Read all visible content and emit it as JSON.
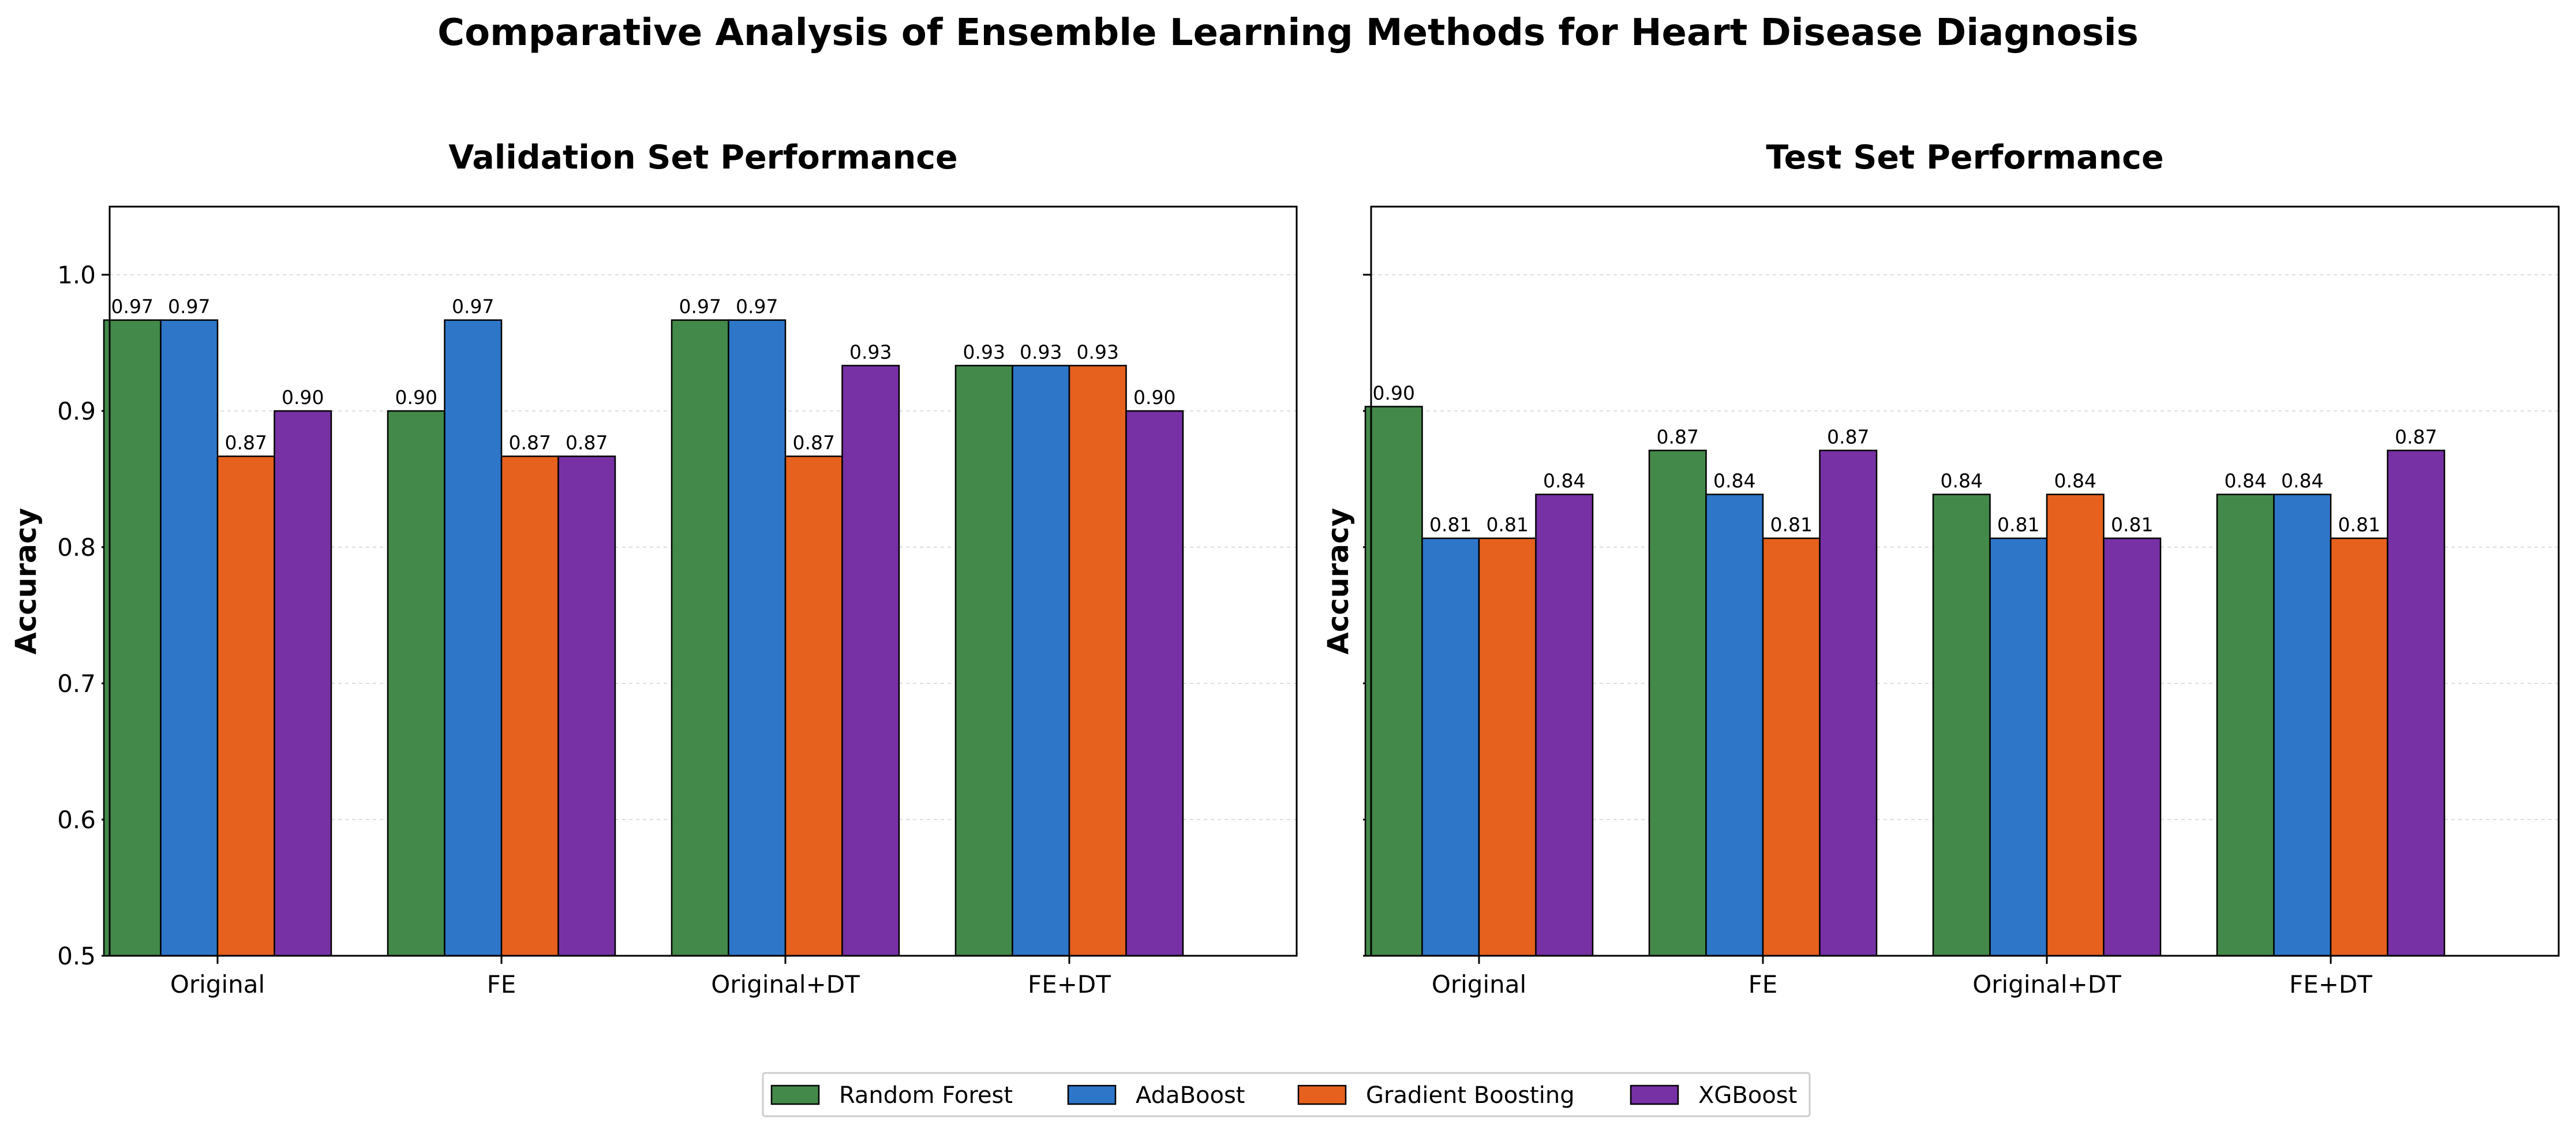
{
  "chart_data": {
    "type": "bar",
    "title": "Comparative Analysis of Ensemble Learning Methods for Heart Disease Diagnosis",
    "legend": {
      "placement": "bottom-center",
      "entries": [
        "Random Forest",
        "AdaBoost",
        "Gradient Boosting",
        "XGBoost"
      ]
    },
    "series_colors": [
      "#43894a",
      "#2e76c8",
      "#e5611d",
      "#7731a4"
    ],
    "panels": [
      {
        "title": "Validation Set Performance",
        "ylabel": "Accuracy",
        "ylim": [
          0.5,
          1.05
        ],
        "yticks": [
          "0.5",
          "0.6",
          "0.7",
          "0.8",
          "0.9",
          "1.0"
        ],
        "grid": true,
        "categories": [
          "Original",
          "FE",
          "Original+DT",
          "FE+DT"
        ],
        "series": [
          {
            "name": "Random Forest",
            "values": [
              0.9667,
              0.9,
              0.9667,
              0.9333
            ],
            "labels": [
              "0.97",
              "0.90",
              "0.97",
              "0.93"
            ]
          },
          {
            "name": "AdaBoost",
            "values": [
              0.9667,
              0.9667,
              0.9667,
              0.9333
            ],
            "labels": [
              "0.97",
              "0.97",
              "0.97",
              "0.93"
            ]
          },
          {
            "name": "Gradient Boosting",
            "values": [
              0.8667,
              0.8667,
              0.8667,
              0.9333
            ],
            "labels": [
              "0.87",
              "0.87",
              "0.87",
              "0.93"
            ]
          },
          {
            "name": "XGBoost",
            "values": [
              0.9,
              0.8667,
              0.9333,
              0.9
            ],
            "labels": [
              "0.90",
              "0.87",
              "0.93",
              "0.90"
            ]
          }
        ]
      },
      {
        "title": "Test Set Performance",
        "ylabel": "Accuracy",
        "ylim": [
          0.5,
          1.05
        ],
        "yticks": [],
        "grid": true,
        "categories": [
          "Original",
          "FE",
          "Original+DT",
          "FE+DT"
        ],
        "series": [
          {
            "name": "Random Forest",
            "values": [
              0.9032,
              0.871,
              0.8387,
              0.8387
            ],
            "labels": [
              "0.90",
              "0.87",
              "0.84",
              "0.84"
            ]
          },
          {
            "name": "AdaBoost",
            "values": [
              0.8065,
              0.8387,
              0.8065,
              0.8387
            ],
            "labels": [
              "0.81",
              "0.84",
              "0.81",
              "0.84"
            ]
          },
          {
            "name": "Gradient Boosting",
            "values": [
              0.8065,
              0.8065,
              0.8387,
              0.8065
            ],
            "labels": [
              "0.81",
              "0.81",
              "0.84",
              "0.81"
            ]
          },
          {
            "name": "XGBoost",
            "values": [
              0.8387,
              0.871,
              0.8065,
              0.871
            ],
            "labels": [
              "0.84",
              "0.87",
              "0.81",
              "0.87"
            ]
          }
        ]
      }
    ]
  }
}
